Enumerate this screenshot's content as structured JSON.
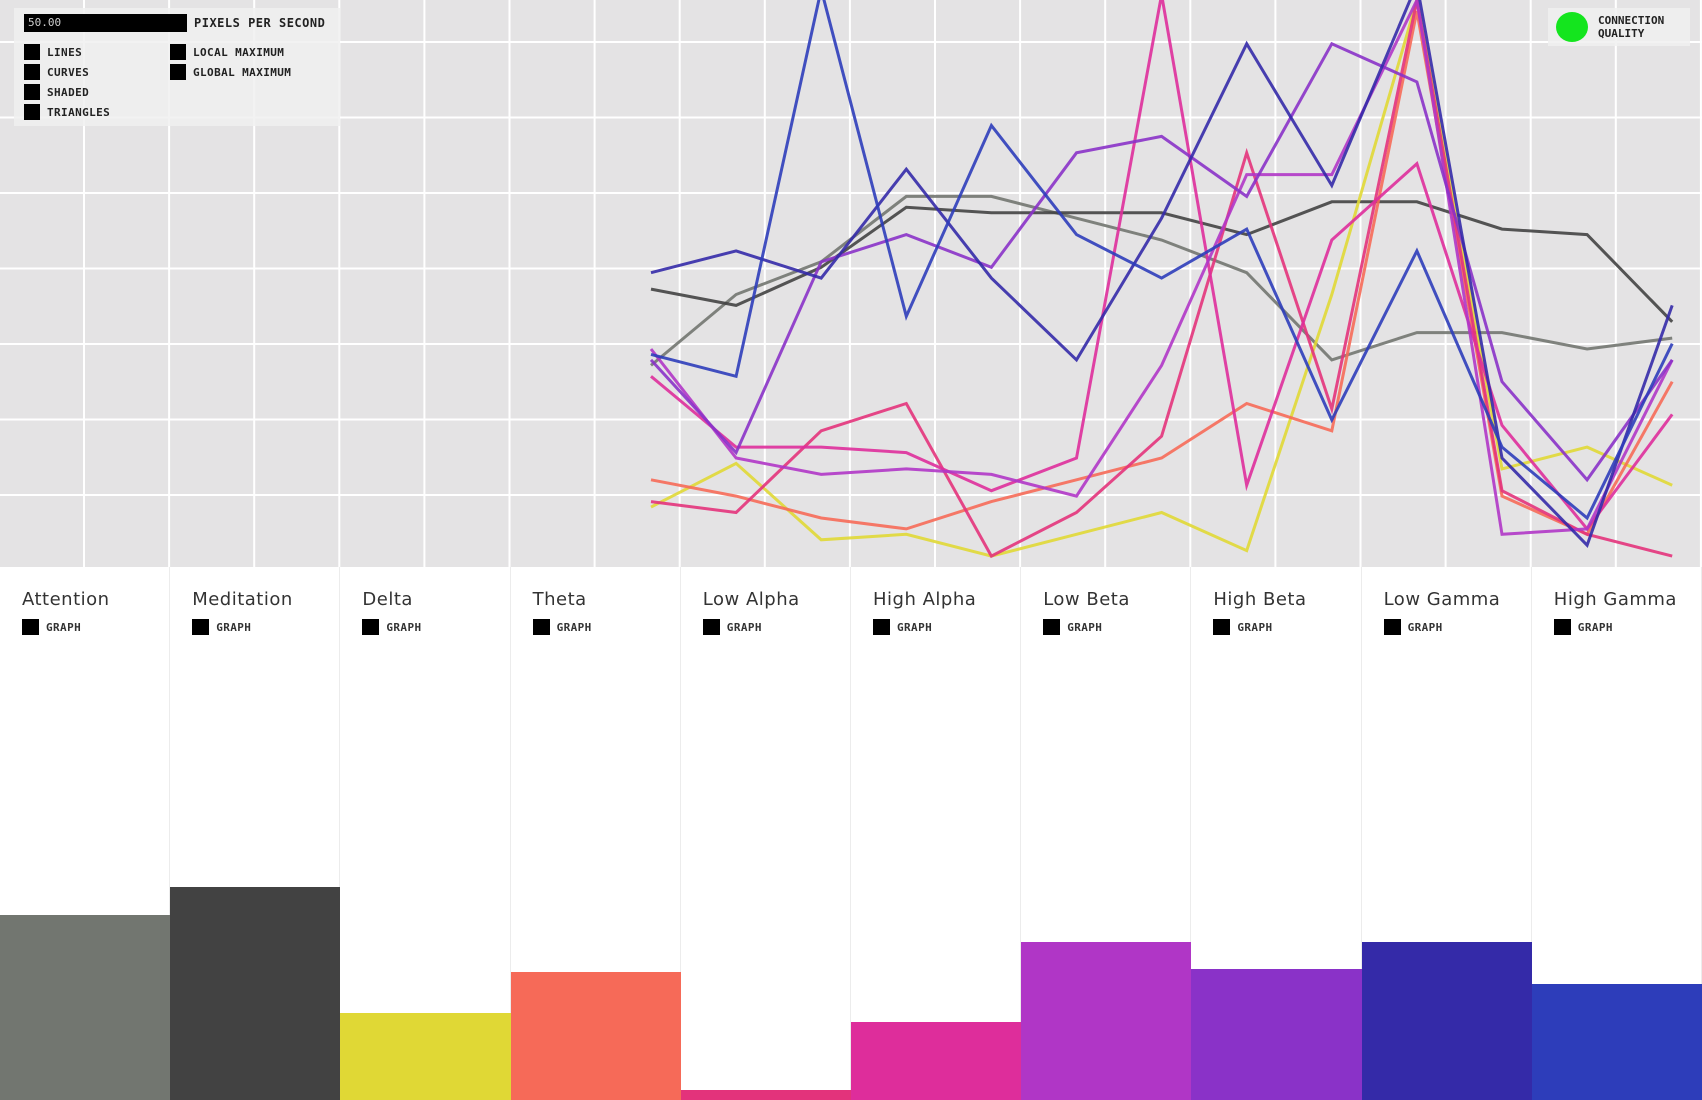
{
  "controls": {
    "pps_value": "50.00",
    "pps_label": "PIXELS PER SECOND",
    "render_options": [
      "LINES",
      "CURVES",
      "SHADED",
      "TRIANGLES"
    ],
    "marker_options": [
      "LOCAL MAXIMUM",
      "GLOBAL MAXIMUM"
    ]
  },
  "connection": {
    "label_line1": "CONNECTION",
    "label_line2": "QUALITY",
    "status_color": "#14e51e"
  },
  "graph_toggle_label": "GRAPH",
  "chart_data": {
    "type": "line",
    "x": [
      0,
      1,
      2,
      3,
      4,
      5,
      6,
      7,
      8,
      9,
      10,
      11,
      12
    ],
    "ylim": [
      0,
      100
    ],
    "grid": true,
    "series": [
      {
        "color": "#727670",
        "values": [
          37,
          50,
          56,
          68,
          68,
          64,
          60,
          54,
          38,
          43,
          43,
          40,
          42
        ]
      },
      {
        "color": "#424242",
        "values": [
          51,
          48,
          55,
          66,
          65,
          65,
          65,
          61,
          67,
          67,
          62,
          61,
          45
        ]
      },
      {
        "color": "#e0d835",
        "values": [
          11,
          19,
          5,
          6,
          2,
          6,
          10,
          3,
          50,
          104,
          18,
          22,
          15
        ]
      },
      {
        "color": "#f66a58",
        "values": [
          16,
          13,
          9,
          7,
          12,
          16,
          20,
          30,
          25,
          102,
          13,
          6,
          34
        ]
      },
      {
        "color": "#e3337b",
        "values": [
          12,
          10,
          25,
          30,
          2,
          10,
          24,
          76,
          29,
          104,
          14,
          6,
          2
        ]
      },
      {
        "color": "#de2d9b",
        "values": [
          35,
          22,
          22,
          21,
          14,
          20,
          105,
          15,
          60,
          74,
          26,
          7,
          28
        ]
      },
      {
        "color": "#b036c6",
        "values": [
          40,
          20,
          17,
          18,
          17,
          13,
          37,
          72,
          72,
          104,
          6,
          7,
          38
        ]
      },
      {
        "color": "#8a32c8",
        "values": [
          38,
          21,
          56,
          61,
          55,
          76,
          79,
          68,
          96,
          89,
          34,
          16,
          38
        ]
      },
      {
        "color": "#342aa8",
        "values": [
          54,
          58,
          53,
          73,
          53,
          38,
          64,
          96,
          70,
          107,
          20,
          4,
          48
        ]
      },
      {
        "color": "#2d3dba",
        "values": [
          39,
          35,
          106,
          46,
          81,
          61,
          53,
          62,
          27,
          58,
          22,
          9,
          41
        ]
      }
    ]
  },
  "bands": [
    {
      "name": "Attention",
      "color": "#727670",
      "level": 34.7
    },
    {
      "name": "Meditation",
      "color": "#424242",
      "level": 39.9
    },
    {
      "name": "Delta",
      "color": "#e0d835",
      "level": 16.3
    },
    {
      "name": "Theta",
      "color": "#f66a58",
      "level": 24.0
    },
    {
      "name": "Low Alpha",
      "color": "#e3337b",
      "level": 1.9
    },
    {
      "name": "High Alpha",
      "color": "#de2d9b",
      "level": 14.6
    },
    {
      "name": "Low Beta",
      "color": "#b036c6",
      "level": 29.6
    },
    {
      "name": "High Beta",
      "color": "#8a32c8",
      "level": 24.6
    },
    {
      "name": "Low Gamma",
      "color": "#342aa8",
      "level": 29.6
    },
    {
      "name": "High Gamma",
      "color": "#2d3dba",
      "level": 21.8
    }
  ]
}
